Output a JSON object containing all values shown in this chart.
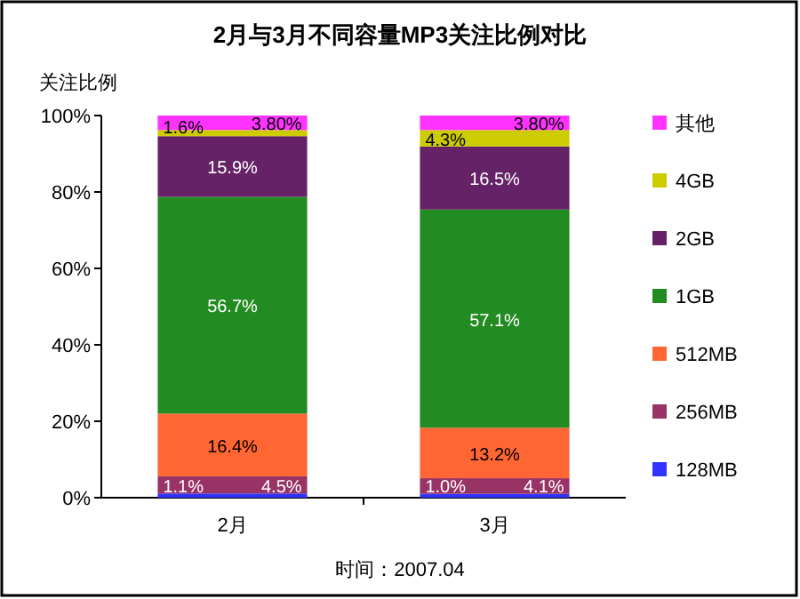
{
  "chart_data": {
    "type": "bar",
    "stacked": true,
    "title": "2月与3月不同容量MP3关注比例对比",
    "ylabel": "关注比例",
    "categories": [
      "2月",
      "3月"
    ],
    "ylim": [
      0,
      100
    ],
    "yticks": [
      {
        "value": 0,
        "label": "0%"
      },
      {
        "value": 20,
        "label": "20%"
      },
      {
        "value": 40,
        "label": "40%"
      },
      {
        "value": 60,
        "label": "60%"
      },
      {
        "value": 80,
        "label": "80%"
      },
      {
        "value": 100,
        "label": "100%"
      }
    ],
    "series": [
      {
        "name": "128MB",
        "color": "#3333ff",
        "values": [
          1.1,
          1.0
        ],
        "value_labels": [
          "1.1%",
          "1.0%"
        ]
      },
      {
        "name": "256MB",
        "color": "#993366",
        "values": [
          4.5,
          4.1
        ],
        "value_labels": [
          "4.5%",
          "4.1%"
        ]
      },
      {
        "name": "512MB",
        "color": "#ff6633",
        "values": [
          16.4,
          13.2
        ],
        "value_labels": [
          "16.4%",
          "13.2%"
        ]
      },
      {
        "name": "1GB",
        "color": "#228b22",
        "values": [
          56.7,
          57.1
        ],
        "value_labels": [
          "56.7%",
          "57.1%"
        ]
      },
      {
        "name": "2GB",
        "color": "#662266",
        "values": [
          15.9,
          16.5
        ],
        "value_labels": [
          "15.9%",
          "16.5%"
        ]
      },
      {
        "name": "4GB",
        "color": "#cccc00",
        "values": [
          1.6,
          4.3
        ],
        "value_labels": [
          "1.6%",
          "4.3%"
        ]
      },
      {
        "name": "其他",
        "color": "#ff33ff",
        "values": [
          3.8,
          3.8
        ],
        "value_labels": [
          "3.80%",
          "3.80%"
        ]
      }
    ],
    "legend": "right",
    "grid": false,
    "annotations": [
      "时间：2007.04"
    ]
  }
}
